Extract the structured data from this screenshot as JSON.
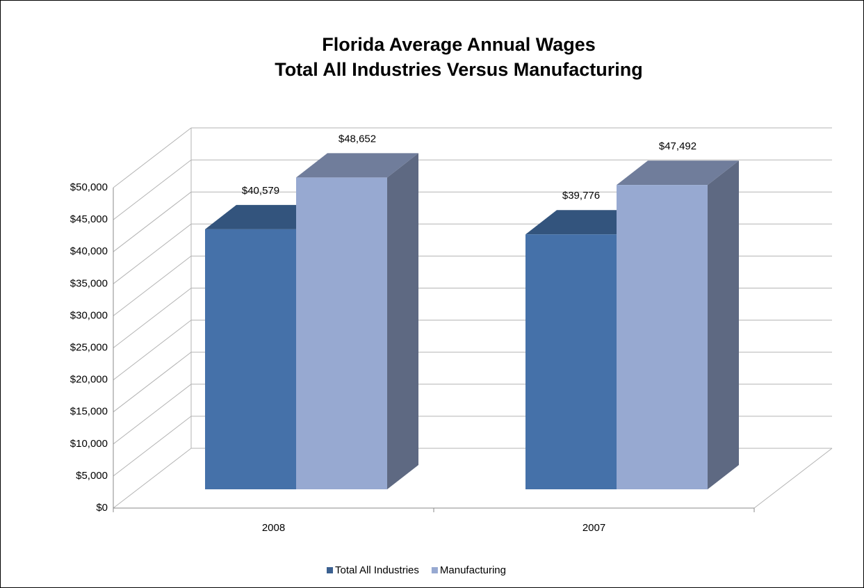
{
  "chart_data": {
    "type": "bar3d",
    "title": "Florida Average Annual Wages",
    "subtitle": "Total All Industries Versus Manufacturing",
    "categories": [
      "2008",
      "2007"
    ],
    "series": [
      {
        "name": "Total All Industries",
        "color": "#4571a9",
        "values": [
          40579,
          39776
        ],
        "value_labels": [
          "$40,579",
          "$39,776"
        ]
      },
      {
        "name": "Manufacturing",
        "color": "#97a9d1",
        "values": [
          48652,
          47492
        ],
        "value_labels": [
          "$48,652",
          "$47,492"
        ]
      }
    ],
    "ylim": [
      0,
      50000
    ],
    "yticks": [
      {
        "value": 0,
        "label": "$0"
      },
      {
        "value": 5000,
        "label": "$5,000"
      },
      {
        "value": 10000,
        "label": "$10,000"
      },
      {
        "value": 15000,
        "label": "$15,000"
      },
      {
        "value": 20000,
        "label": "$20,000"
      },
      {
        "value": 25000,
        "label": "$25,000"
      },
      {
        "value": 30000,
        "label": "$30,000"
      },
      {
        "value": 35000,
        "label": "$35,000"
      },
      {
        "value": 40000,
        "label": "$40,000"
      },
      {
        "value": 45000,
        "label": "$45,000"
      },
      {
        "value": 50000,
        "label": "$50,000"
      }
    ],
    "grid": true,
    "legend": "bottom"
  }
}
